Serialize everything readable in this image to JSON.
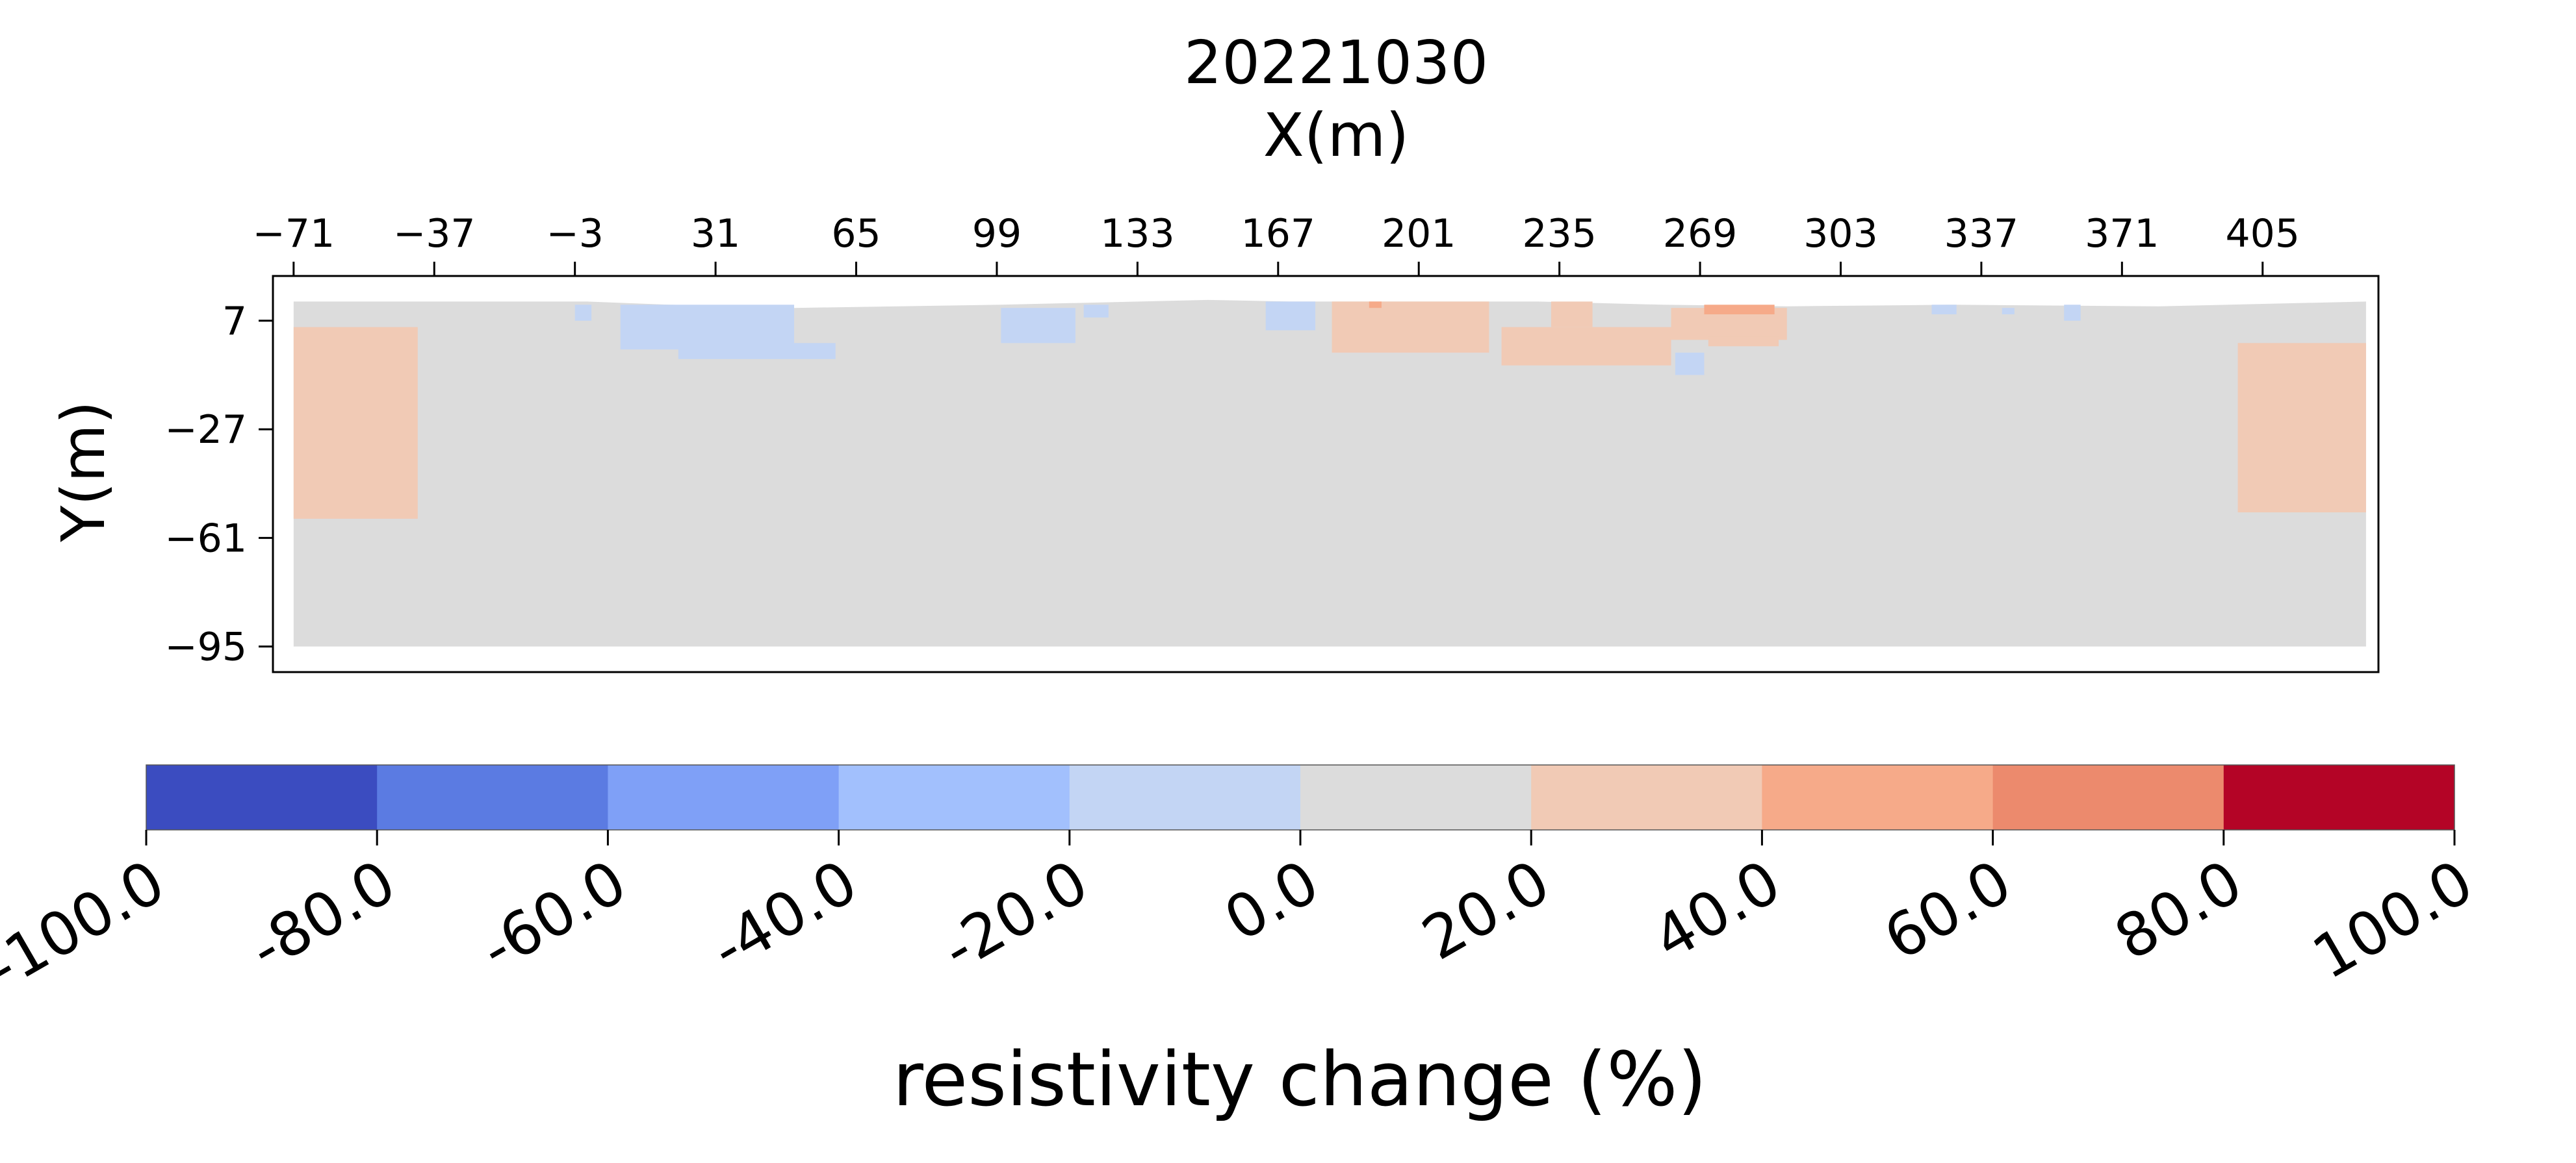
{
  "chart_data": {
    "type": "heatmap",
    "title": "20221030",
    "xlabel": "X(m)",
    "ylabel": "Y(m)",
    "x_ticks": [
      -71,
      -37,
      -3,
      31,
      65,
      99,
      133,
      167,
      201,
      235,
      269,
      303,
      337,
      371,
      405
    ],
    "y_ticks": [
      7,
      -27,
      -61,
      -95
    ],
    "x_tick_labels": [
      "−71",
      "−37",
      "−3",
      "31",
      "65",
      "99",
      "133",
      "167",
      "201",
      "235",
      "269",
      "303",
      "337",
      "371",
      "405"
    ],
    "y_tick_labels": [
      "7",
      "−27",
      "−61",
      "−95"
    ],
    "xlim": [
      -76,
      433
    ],
    "ylim": [
      -103,
      21
    ],
    "xaxis_position": "top",
    "grid": false,
    "background_value": 0,
    "surface": [
      [
        -71,
        13
      ],
      [
        0,
        13
      ],
      [
        20,
        12
      ],
      [
        50,
        11
      ],
      [
        100,
        12
      ],
      [
        150,
        13.5
      ],
      [
        170,
        13
      ],
      [
        230,
        13
      ],
      [
        260,
        12
      ],
      [
        290,
        11.5
      ],
      [
        330,
        12
      ],
      [
        380,
        11.5
      ],
      [
        430,
        13
      ]
    ],
    "cells": [
      {
        "x": [
          -71,
          -41
        ],
        "y": [
          -55,
          5
        ],
        "value": 30
      },
      {
        "x": [
          399,
          430
        ],
        "y": [
          -53,
          0
        ],
        "value": 30
      },
      {
        "x": [
          -3,
          1
        ],
        "y": [
          7,
          12
        ],
        "value": -10
      },
      {
        "x": [
          8,
          50
        ],
        "y": [
          -2,
          12
        ],
        "value": -10
      },
      {
        "x": [
          22,
          60
        ],
        "y": [
          -5,
          0
        ],
        "value": -10
      },
      {
        "x": [
          100,
          118
        ],
        "y": [
          0,
          11
        ],
        "value": -10
      },
      {
        "x": [
          120,
          126
        ],
        "y": [
          8,
          12
        ],
        "value": -10
      },
      {
        "x": [
          164,
          176
        ],
        "y": [
          4,
          13
        ],
        "value": -10
      },
      {
        "x": [
          263,
          270
        ],
        "y": [
          -10,
          -3
        ],
        "value": -10
      },
      {
        "x": [
          325,
          331
        ],
        "y": [
          9,
          12
        ],
        "value": -10
      },
      {
        "x": [
          342,
          345
        ],
        "y": [
          9,
          11
        ],
        "value": -10
      },
      {
        "x": [
          357,
          361
        ],
        "y": [
          7,
          12
        ],
        "value": -10
      },
      {
        "x": [
          180,
          218
        ],
        "y": [
          -3,
          13
        ],
        "value": 30
      },
      {
        "x": [
          221,
          262
        ],
        "y": [
          -7,
          5
        ],
        "value": 30
      },
      {
        "x": [
          233,
          243
        ],
        "y": [
          5,
          13
        ],
        "value": 30
      },
      {
        "x": [
          262,
          290
        ],
        "y": [
          1,
          11
        ],
        "value": 30
      },
      {
        "x": [
          271,
          288
        ],
        "y": [
          -1,
          2
        ],
        "value": 30
      },
      {
        "x": [
          270,
          287
        ],
        "y": [
          9,
          12
        ],
        "value": 50
      },
      {
        "x": [
          189,
          192
        ],
        "y": [
          11,
          13
        ],
        "value": 50
      }
    ]
  },
  "colorbar": {
    "label": "resistivity change (%)",
    "levels": [
      -100,
      -80,
      -60,
      -40,
      -20,
      0,
      20,
      40,
      60,
      80,
      100
    ],
    "tick_labels": [
      "-100.0",
      "-80.0",
      "-60.0",
      "-40.0",
      "-20.0",
      "0.0",
      "20.0",
      "40.0",
      "60.0",
      "80.0",
      "100.0"
    ],
    "colors": [
      "#3b4cc0",
      "#5b7be2",
      "#7fa0f7",
      "#a2c0fd",
      "#c3d5f4",
      "#dcdcdc",
      "#f1cab5",
      "#f6aa89",
      "#ec8a6d",
      "#b40426"
    ]
  }
}
